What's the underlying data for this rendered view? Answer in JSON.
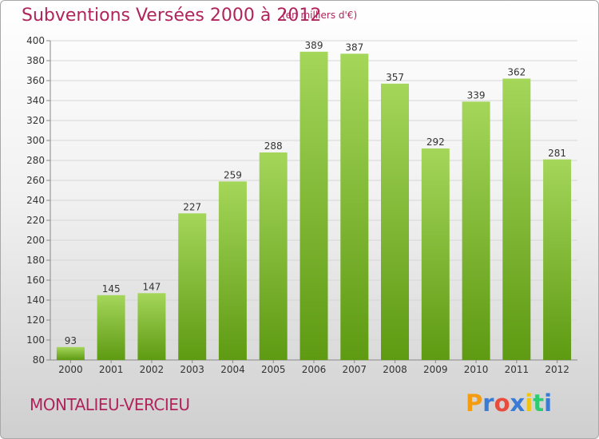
{
  "header": {
    "title": "Subventions Versées 2000 à 2012",
    "unit_note": "(en milliers d'€)"
  },
  "footer": {
    "commune": "MONTALIEU-VERCIEU",
    "brand_letters": [
      "P",
      "r",
      "o",
      "x",
      "i",
      "t",
      "i"
    ],
    "brand_colors": [
      "#f39c12",
      "#3a7bd5",
      "#e74c3c",
      "#3a7bd5",
      "#f1c40f",
      "#2ecc71",
      "#3a7bd5"
    ]
  },
  "colors": {
    "title": "#b0245b",
    "bar_top": "#a4d65a",
    "bar_bottom": "#5e9a12"
  },
  "chart_data": {
    "type": "bar",
    "title": "Subventions Versées 2000 à 2012",
    "subtitle": "(en milliers d'€)",
    "categories": [
      "2000",
      "2001",
      "2002",
      "2003",
      "2004",
      "2005",
      "2006",
      "2007",
      "2008",
      "2009",
      "2010",
      "2011",
      "2012"
    ],
    "values": [
      93,
      145,
      147,
      227,
      259,
      288,
      389,
      387,
      357,
      292,
      339,
      362,
      281
    ],
    "ylim": [
      80,
      400
    ],
    "yticks": [
      80,
      100,
      120,
      140,
      160,
      180,
      200,
      220,
      240,
      260,
      280,
      300,
      320,
      340,
      360,
      380,
      400
    ],
    "grid": true,
    "xlabel": "",
    "ylabel": ""
  }
}
